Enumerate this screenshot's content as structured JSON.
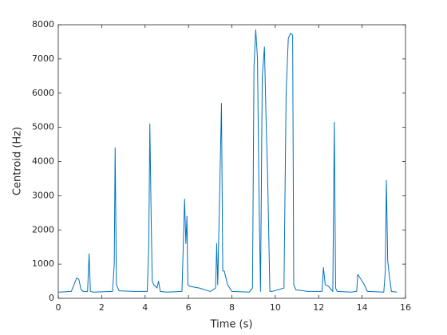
{
  "chart_data": {
    "type": "line",
    "xlabel": "Time (s)",
    "ylabel": "Centroid (Hz)",
    "x": [
      0,
      0.3,
      0.6,
      0.85,
      0.95,
      1.05,
      1.15,
      1.35,
      1.42,
      1.48,
      1.6,
      2.0,
      2.5,
      2.58,
      2.62,
      2.68,
      2.8,
      3.5,
      4.1,
      4.17,
      4.22,
      4.28,
      4.33,
      4.4,
      4.55,
      4.62,
      4.7,
      5.0,
      5.7,
      5.82,
      5.88,
      5.93,
      5.97,
      6.05,
      6.5,
      7.0,
      7.25,
      7.3,
      7.35,
      7.45,
      7.52,
      7.58,
      7.65,
      7.8,
      8.0,
      8.8,
      8.95,
      9.02,
      9.1,
      9.18,
      9.25,
      9.32,
      9.4,
      9.5,
      9.58,
      9.65,
      9.75,
      9.85,
      10.4,
      10.5,
      10.6,
      10.7,
      10.8,
      10.85,
      10.95,
      11.5,
      12.15,
      12.22,
      12.3,
      12.45,
      12.65,
      12.72,
      12.78,
      12.85,
      13.5,
      13.75,
      13.8,
      13.95,
      14.1,
      14.25,
      15.0,
      15.07,
      15.12,
      15.18,
      15.25,
      15.35,
      15.6
    ],
    "series": [
      {
        "color": "#0072bd",
        "values": [
          180,
          190,
          200,
          600,
          550,
          250,
          200,
          200,
          1300,
          200,
          180,
          190,
          200,
          1000,
          4400,
          400,
          220,
          200,
          200,
          1500,
          5100,
          2400,
          500,
          400,
          300,
          500,
          200,
          180,
          200,
          2900,
          1600,
          2400,
          400,
          350,
          300,
          200,
          300,
          1600,
          400,
          3500,
          5700,
          800,
          800,
          400,
          200,
          180,
          300,
          6800,
          7850,
          7000,
          3000,
          200,
          6500,
          7350,
          5100,
          3500,
          200,
          200,
          300,
          6000,
          7600,
          7750,
          7700,
          400,
          250,
          200,
          200,
          900,
          400,
          350,
          200,
          5150,
          300,
          200,
          180,
          200,
          700,
          550,
          400,
          200,
          180,
          800,
          3450,
          1100,
          700,
          200,
          180
        ]
      }
    ],
    "xlim": [
      0,
      16
    ],
    "xticks": [
      0,
      2,
      4,
      6,
      8,
      10,
      12,
      14,
      16
    ],
    "ylim": [
      0,
      8000
    ],
    "yticks": [
      0,
      1000,
      2000,
      3000,
      4000,
      5000,
      6000,
      7000,
      8000
    ],
    "grid": false
  }
}
